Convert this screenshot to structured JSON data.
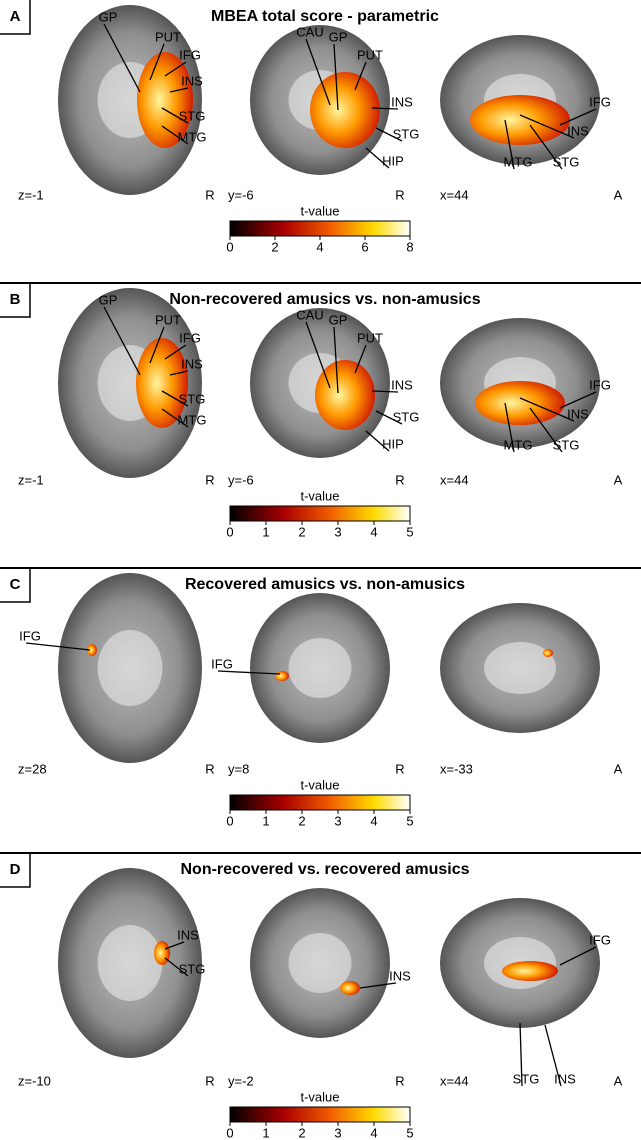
{
  "panels": [
    {
      "letter": "A",
      "title": "MBEA total score - parametric",
      "views": [
        {
          "coord": "z=-1",
          "orient": "R",
          "labels": [
            "GP",
            "PUT",
            "IFG",
            "INS",
            "STG",
            "MTG"
          ]
        },
        {
          "coord": "y=-6",
          "orient": "R",
          "labels": [
            "CAU",
            "GP",
            "PUT",
            "INS",
            "STG",
            "HIP"
          ]
        },
        {
          "coord": "x=44",
          "orient": "A",
          "labels": [
            "IFG",
            "INS",
            "STG",
            "MTG"
          ]
        }
      ],
      "colorbar": {
        "title": "t-value",
        "ticks": [
          0,
          2,
          4,
          6,
          8
        ]
      }
    },
    {
      "letter": "B",
      "title": "Non-recovered amusics vs. non-amusics",
      "views": [
        {
          "coord": "z=-1",
          "orient": "R",
          "labels": [
            "GP",
            "PUT",
            "IFG",
            "INS",
            "STG",
            "MTG"
          ]
        },
        {
          "coord": "y=-6",
          "orient": "R",
          "labels": [
            "CAU",
            "GP",
            "PUT",
            "INS",
            "STG",
            "HIP"
          ]
        },
        {
          "coord": "x=44",
          "orient": "A",
          "labels": [
            "IFG",
            "INS",
            "STG",
            "MTG"
          ]
        }
      ],
      "colorbar": {
        "title": "t-value",
        "ticks": [
          0,
          1,
          2,
          3,
          4,
          5
        ]
      }
    },
    {
      "letter": "C",
      "title": "Recovered amusics vs. non-amusics",
      "views": [
        {
          "coord": "z=28",
          "orient": "R",
          "labels": [
            "IFG"
          ]
        },
        {
          "coord": "y=8",
          "orient": "R",
          "labels": [
            "IFG"
          ]
        },
        {
          "coord": "x=-33",
          "orient": "A",
          "labels": []
        }
      ],
      "colorbar": {
        "title": "t-value",
        "ticks": [
          0,
          1,
          2,
          3,
          4,
          5
        ]
      }
    },
    {
      "letter": "D",
      "title": "Non-recovered vs. recovered amusics",
      "views": [
        {
          "coord": "z=-10",
          "orient": "R",
          "labels": [
            "INS",
            "STG"
          ]
        },
        {
          "coord": "y=-2",
          "orient": "R",
          "labels": [
            "INS"
          ]
        },
        {
          "coord": "x=44",
          "orient": "A",
          "labels": [
            "IFG",
            "STG",
            "INS"
          ]
        }
      ],
      "colorbar": {
        "title": "t-value",
        "ticks": [
          0,
          1,
          2,
          3,
          4,
          5
        ]
      }
    }
  ]
}
